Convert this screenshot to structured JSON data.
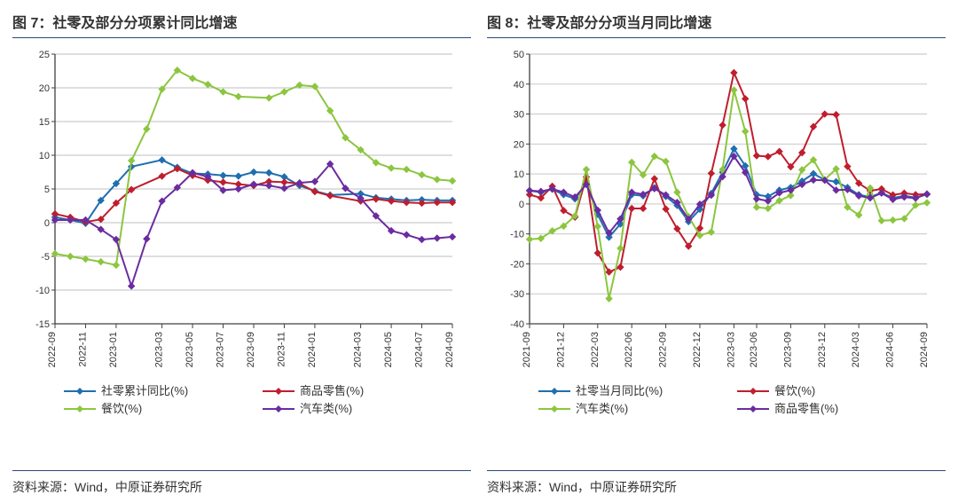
{
  "left": {
    "title": "图 7：社零及部分分项累计同比增速",
    "source": "资料来源：Wind，中原证券研究所",
    "chart": {
      "type": "line",
      "ylim": [
        -15,
        25
      ],
      "ytick_step": 5,
      "yticks": [
        -15,
        -10,
        -5,
        0,
        5,
        10,
        15,
        20,
        25
      ],
      "xlabels": [
        "2022-09",
        "2022-11",
        "2023-01",
        "2023-03",
        "2023-05",
        "2023-07",
        "2023-09",
        "2023-11",
        "2024-01",
        "2024-03",
        "2024-05",
        "2024-07",
        "2024-09"
      ],
      "xlabel_fontsize": 11,
      "ylabel_fontsize": 11,
      "grid_color": "#bfbfbf",
      "axis_color": "#404040",
      "background_color": "#ffffff",
      "line_width": 2,
      "marker_size": 3.5,
      "series": [
        {
          "name": "社零累计同比(%)",
          "color": "#1f6fb0",
          "marker": "diamond",
          "values": [
            0.8,
            0.4,
            -0.1,
            3.3,
            5.8,
            8.3,
            9.3,
            8.2,
            7.3,
            7.2,
            7.0,
            6.9,
            7.5,
            7.4,
            6.8,
            5.5,
            4.7,
            4.1,
            4.3,
            3.7,
            3.5,
            3.3,
            3.4,
            3.3,
            3.3
          ]
        },
        {
          "name": "商品零售(%)",
          "color": "#bf1e2e",
          "marker": "diamond",
          "values": [
            1.3,
            0.8,
            0.1,
            0.5,
            2.9,
            4.9,
            6.9,
            8.0,
            7.0,
            6.3,
            6.0,
            5.7,
            5.5,
            6.1,
            6.0,
            5.8,
            4.6,
            4.0,
            3.2,
            3.5,
            3.2,
            3.0,
            2.9,
            3.0,
            3.0
          ]
        },
        {
          "name": "餐饮(%)",
          "color": "#8cc63f",
          "marker": "diamond",
          "values": [
            -4.6,
            -5.0,
            -5.4,
            -5.8,
            -6.3,
            9.2,
            13.9,
            19.8,
            22.6,
            21.4,
            20.5,
            19.4,
            18.7,
            18.5,
            19.4,
            20.4,
            20.2,
            16.6,
            12.6,
            10.8,
            8.9,
            8.1,
            7.9,
            7.1,
            6.4,
            6.2
          ]
        },
        {
          "name": "汽车类(%)",
          "color": "#6a2ca0",
          "marker": "diamond",
          "values": [
            0.4,
            0.4,
            0.4,
            -1.0,
            -2.5,
            -9.4,
            -2.4,
            3.2,
            5.2,
            7.4,
            6.8,
            4.8,
            5.0,
            5.7,
            5.5,
            5.1,
            5.9,
            6.1,
            8.7,
            5.1,
            3.6,
            1.0,
            -1.2,
            -1.8,
            -2.5,
            -2.3,
            -2.1
          ]
        }
      ]
    },
    "legend": [
      {
        "label": "社零累计同比(%)",
        "color": "#1f6fb0"
      },
      {
        "label": "商品零售(%)",
        "color": "#bf1e2e"
      },
      {
        "label": "餐饮(%)",
        "color": "#8cc63f"
      },
      {
        "label": "汽车类(%)",
        "color": "#6a2ca0"
      }
    ]
  },
  "right": {
    "title": "图 8：社零及部分分项当月同比增速",
    "source": "资料来源：Wind，中原证券研究所",
    "chart": {
      "type": "line",
      "ylim": [
        -40,
        50
      ],
      "ytick_step": 10,
      "yticks": [
        -40,
        -30,
        -20,
        -10,
        0,
        10,
        20,
        30,
        40,
        50
      ],
      "xlabels": [
        "2021-09",
        "2021-12",
        "2022-03",
        "2022-06",
        "2022-09",
        "2022-12",
        "2023-03",
        "2023-06",
        "2023-09",
        "2023-12",
        "2024-03",
        "2024-06",
        "2024-09"
      ],
      "xlabel_fontsize": 11,
      "ylabel_fontsize": 11,
      "grid_color": "#bfbfbf",
      "axis_color": "#404040",
      "background_color": "#ffffff",
      "line_width": 2,
      "marker_size": 3.5,
      "series": [
        {
          "name": "社零当月同比(%)",
          "color": "#1f6fb0",
          "marker": "diamond",
          "values": [
            4.4,
            3.9,
            4.9,
            3.1,
            1.7,
            6.7,
            -3.5,
            -11.1,
            -6.7,
            3.1,
            2.7,
            5.4,
            2.5,
            -0.5,
            -5.9,
            -1.8,
            3.5,
            10.6,
            18.4,
            12.7,
            3.1,
            2.5,
            4.6,
            5.5,
            7.6,
            10.1,
            8.0,
            7.4,
            5.5,
            3.1,
            2.3,
            3.7,
            2.0,
            2.7,
            2.1,
            3.2
          ]
        },
        {
          "name": "餐饮(%)",
          "color": "#bf1e2e",
          "marker": "diamond",
          "values": [
            3.1,
            2.0,
            5.9,
            -2.2,
            -4.4,
            9.0,
            -16.4,
            -22.7,
            -21.1,
            -1.5,
            -1.5,
            8.4,
            -1.7,
            -8.3,
            -14.1,
            -8.1,
            10.2,
            26.3,
            43.8,
            35.1,
            16.1,
            15.8,
            17.5,
            12.4,
            17.1,
            25.8,
            30.0,
            29.8,
            12.5,
            6.9,
            4.4,
            5.0,
            3.0,
            3.6,
            3.1,
            3.3
          ]
        },
        {
          "name": "汽车类(%)",
          "color": "#8cc63f",
          "marker": "diamond",
          "values": [
            -11.8,
            -11.5,
            -9.0,
            -7.4,
            -4.0,
            11.5,
            -7.5,
            -31.6,
            -14.8,
            13.9,
            9.7,
            15.9,
            14.2,
            3.9,
            -4.2,
            -10.5,
            -9.4,
            11.5,
            38.0,
            24.2,
            -1.1,
            -1.5,
            1.1,
            2.8,
            11.4,
            14.7,
            8.1,
            11.7,
            -1.1,
            -3.7,
            5.3,
            -5.6,
            -5.4,
            -4.9,
            -0.4,
            0.4
          ]
        },
        {
          "name": "商品零售(%)",
          "color": "#6a2ca0",
          "marker": "diamond",
          "values": [
            4.5,
            4.2,
            5.0,
            3.9,
            2.3,
            6.5,
            -2.1,
            -9.7,
            -5.0,
            3.9,
            3.2,
            5.1,
            3.0,
            0.5,
            -5.1,
            -0.1,
            2.9,
            9.1,
            15.9,
            10.5,
            1.7,
            1.0,
            3.7,
            4.6,
            6.5,
            8.0,
            7.9,
            4.6,
            4.8,
            2.7,
            2.0,
            3.6,
            1.5,
            2.3,
            1.9,
            3.3
          ]
        }
      ]
    },
    "legend": [
      {
        "label": "社零当月同比(%)",
        "color": "#1f6fb0"
      },
      {
        "label": "餐饮(%)",
        "color": "#bf1e2e"
      },
      {
        "label": "汽车类(%)",
        "color": "#8cc63f"
      },
      {
        "label": "商品零售(%)",
        "color": "#6a2ca0"
      }
    ]
  }
}
